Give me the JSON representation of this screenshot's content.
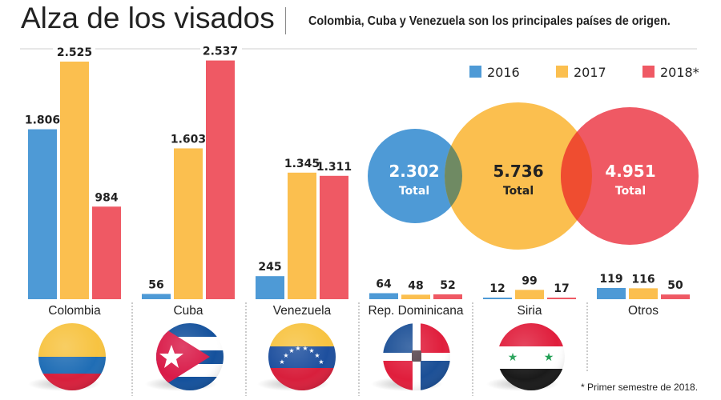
{
  "header": {
    "title": "Alza de los visados",
    "subtitle": "Colombia, Cuba y Venezuela son los principales países de origen."
  },
  "footnote": "* Primer semestre de 2018.",
  "colors": {
    "2016": "#4e9ad6",
    "2017": "#fbbf4f",
    "2018": "#ef5964",
    "overlap_blue_yellow": "#6f8a63",
    "overlap_yellow_red": "#ef4d30"
  },
  "chart_data": [
    {
      "type": "bar",
      "title": "Alza de los visados",
      "subtitle": "Colombia, Cuba y Venezuela son los principales países de origen.",
      "categories": [
        "Colombia",
        "Cuba",
        "Venezuela",
        "Rep. Dominicana",
        "Siria",
        "Otros"
      ],
      "series": [
        {
          "name": "2016",
          "values": [
            1806,
            56,
            245,
            64,
            12,
            119
          ],
          "labels": [
            "1.806",
            "56",
            "245",
            "64",
            "12",
            "119"
          ]
        },
        {
          "name": "2017",
          "values": [
            2525,
            1603,
            1345,
            48,
            99,
            116
          ],
          "labels": [
            "2.525",
            "1.603",
            "1.345",
            "48",
            "99",
            "116"
          ]
        },
        {
          "name": "2018*",
          "values": [
            984,
            2537,
            1311,
            52,
            17,
            50
          ],
          "labels": [
            "984",
            "2.537",
            "1.311",
            "52",
            "17",
            "50"
          ]
        }
      ],
      "legend": {
        "entries": [
          "2016",
          "2017",
          "2018*"
        ],
        "position": "top-right"
      },
      "xlabel": "",
      "ylabel": "",
      "ylim": [
        0,
        2537
      ],
      "grid": false,
      "flags": [
        "colombia-flag",
        "cuba-flag",
        "venezuela-flag",
        "dominican-republic-flag",
        "syria-flag"
      ]
    },
    {
      "type": "bubble",
      "title": "Totales",
      "entries": [
        {
          "name": "2016",
          "value": 2302,
          "label": "2.302",
          "sublabel": "Total"
        },
        {
          "name": "2017",
          "value": 5736,
          "label": "5.736",
          "sublabel": "Total"
        },
        {
          "name": "2018*",
          "value": 4951,
          "label": "4.951",
          "sublabel": "Total"
        }
      ]
    }
  ]
}
